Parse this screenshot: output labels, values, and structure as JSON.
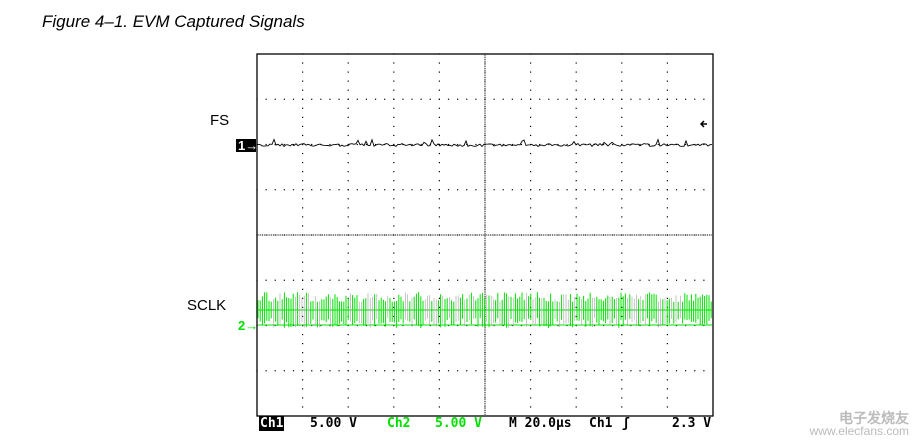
{
  "figure_title": "Figure 4–1. EVM Captured Signals",
  "channels": [
    {
      "label": "FS",
      "marker": "1",
      "color": "#000000"
    },
    {
      "label": "SCLK",
      "marker": "2",
      "color": "#00e000"
    }
  ],
  "status": {
    "ch1": "Ch1",
    "ch1_scale": "5.00 V",
    "ch2": "Ch2",
    "ch2_scale": "5.00 V",
    "timebase": "M 20.0µs",
    "trigger_src": "Ch1",
    "trigger_slope": "ʃ",
    "trigger_level": "2.3 V"
  },
  "watermark": {
    "logo_text": "电子发烧友",
    "url": "www.elecfans.com"
  }
}
